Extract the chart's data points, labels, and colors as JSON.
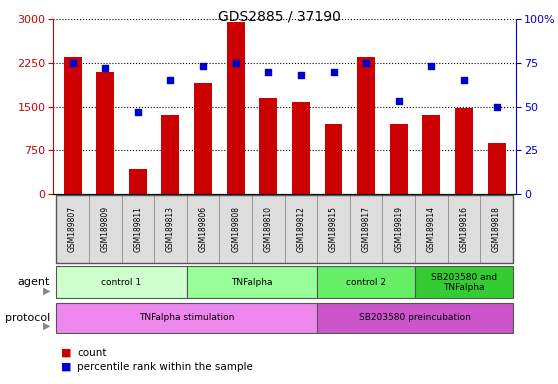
{
  "title": "GDS2885 / 37190",
  "samples": [
    "GSM189807",
    "GSM189809",
    "GSM189811",
    "GSM189813",
    "GSM189806",
    "GSM189808",
    "GSM189810",
    "GSM189812",
    "GSM189815",
    "GSM189817",
    "GSM189819",
    "GSM189814",
    "GSM189816",
    "GSM189818"
  ],
  "counts": [
    2350,
    2100,
    430,
    1350,
    1900,
    2950,
    1650,
    1570,
    1200,
    2350,
    1200,
    1350,
    1480,
    880
  ],
  "percentiles": [
    75,
    72,
    47,
    65,
    73,
    75,
    70,
    68,
    70,
    75,
    53,
    73,
    65,
    50
  ],
  "ylim_left": [
    0,
    3000
  ],
  "ylim_right": [
    0,
    100
  ],
  "yticks_left": [
    0,
    750,
    1500,
    2250,
    3000
  ],
  "yticks_right": [
    0,
    25,
    50,
    75,
    100
  ],
  "ytick_right_labels": [
    "0",
    "25",
    "50",
    "75",
    "100%"
  ],
  "bar_color": "#cc0000",
  "dot_color": "#0000cc",
  "agent_groups": [
    {
      "label": "control 1",
      "start": 0,
      "end": 3,
      "color": "#ccffcc"
    },
    {
      "label": "TNFalpha",
      "start": 4,
      "end": 7,
      "color": "#99ff99"
    },
    {
      "label": "control 2",
      "start": 8,
      "end": 10,
      "color": "#66ee66"
    },
    {
      "label": "SB203580 and\nTNFalpha",
      "start": 11,
      "end": 13,
      "color": "#33cc33"
    }
  ],
  "protocol_groups": [
    {
      "label": "TNFalpha stimulation",
      "start": 0,
      "end": 7,
      "color": "#ee88ee"
    },
    {
      "label": "SB203580 preincubation",
      "start": 8,
      "end": 13,
      "color": "#cc55cc"
    }
  ],
  "label_color_left": "#cc0000",
  "label_color_right": "#0000cc",
  "sample_box_color": "#dddddd",
  "sample_box_edge": "#888888"
}
